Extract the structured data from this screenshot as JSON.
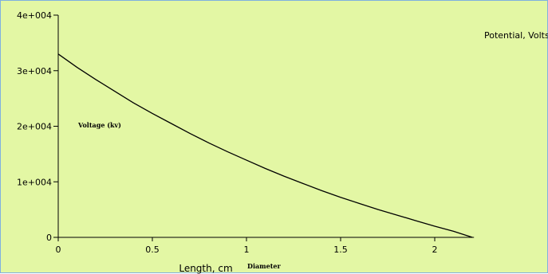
{
  "chart_data": {
    "type": "line",
    "xlabel": "Length, cm",
    "ylabel": "",
    "title": "",
    "xlim": [
      0,
      2.5
    ],
    "ylim": [
      0,
      40000
    ],
    "x_ticks": [
      0,
      0.5,
      1,
      1.5,
      2
    ],
    "x_tick_labels": [
      "0",
      "0.5",
      "1",
      "1.5",
      "2"
    ],
    "y_ticks": [
      0,
      10000,
      20000,
      30000,
      40000
    ],
    "y_tick_labels": [
      "0",
      "1e+004",
      "2e+004",
      "3e+004",
      "4e+004"
    ],
    "grid": false,
    "legend_position": "top-right",
    "series": [
      {
        "name": "Potential, Volts",
        "color": "#000000",
        "x": [
          0,
          0.1,
          0.2,
          0.3,
          0.4,
          0.5,
          0.6,
          0.7,
          0.8,
          0.9,
          1.0,
          1.1,
          1.2,
          1.3,
          1.4,
          1.5,
          1.6,
          1.7,
          1.8,
          1.9,
          2.0,
          2.1,
          2.2
        ],
        "y": [
          33000,
          30600,
          28400,
          26300,
          24200,
          22300,
          20500,
          18700,
          17000,
          15400,
          13900,
          12400,
          11000,
          9700,
          8400,
          7200,
          6100,
          5000,
          4000,
          3000,
          2000,
          1100,
          0
        ]
      }
    ],
    "annotations": [
      {
        "text": "Voltage (kv)"
      },
      {
        "text": "Diameter"
      }
    ]
  }
}
